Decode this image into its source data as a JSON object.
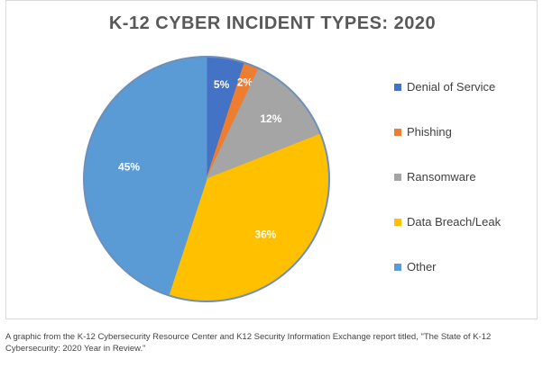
{
  "chart_data": {
    "type": "pie",
    "title": "K-12 CYBER INCIDENT TYPES: 2020",
    "categories": [
      "Denial of Service",
      "Phishing",
      "Ransomware",
      "Data Breach/Leak",
      "Other"
    ],
    "values": [
      5,
      2,
      12,
      36,
      45
    ],
    "value_labels": [
      "5%",
      "2%",
      "12%",
      "36%",
      "45%"
    ],
    "colors": [
      "#4472C4",
      "#ED7D31",
      "#A5A5A5",
      "#FFC000",
      "#5B9BD5"
    ],
    "legend_position": "right"
  },
  "caption": "A graphic from the K-12 Cybersecurity Resource Center and K12 Security Information Exchange report titled, \"The State of K-12 Cybersecurity: 2020 Year in Review.\""
}
